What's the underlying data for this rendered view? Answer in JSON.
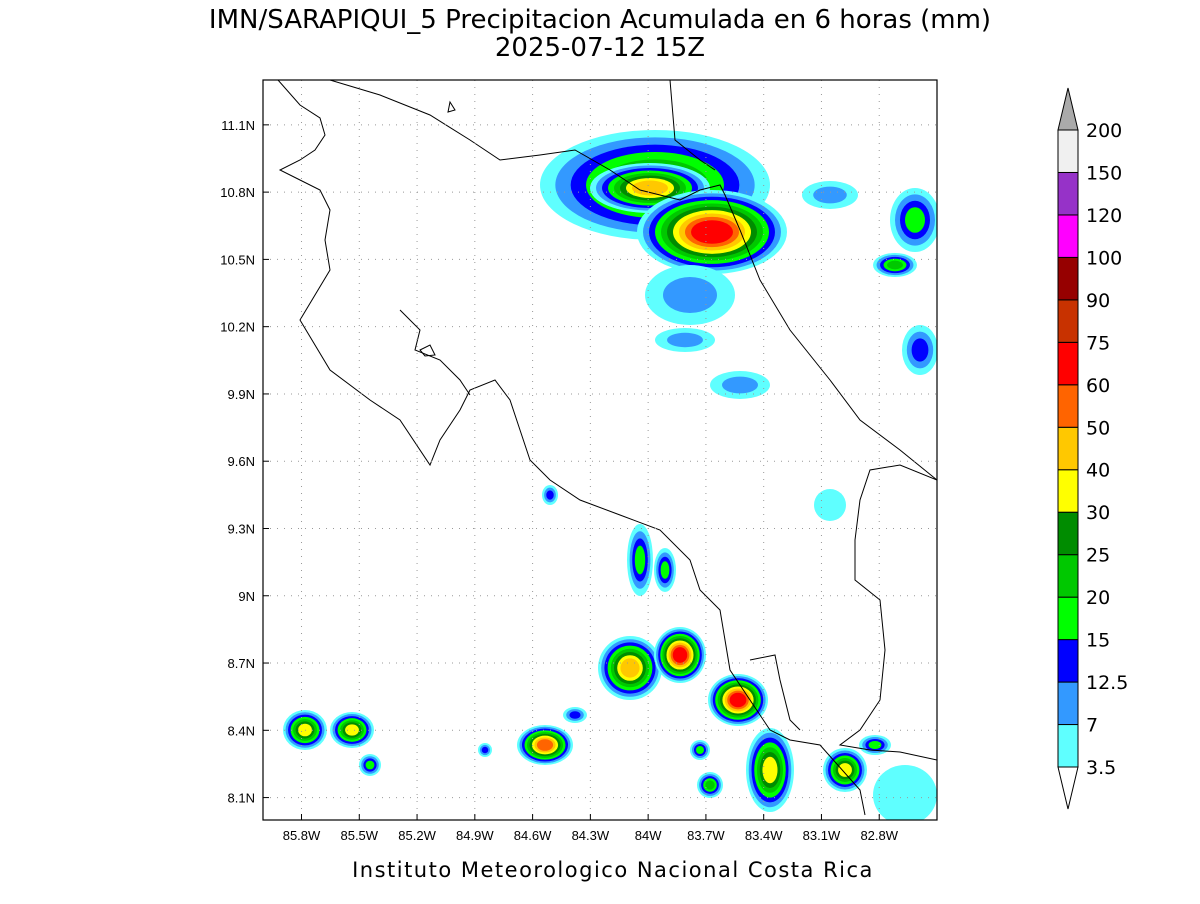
{
  "title": "IMN/SARAPIQUI_5 Precipitacion Acumulada en 6 horas (mm)",
  "subtitle": "2025-07-12 15Z",
  "footer": "Instituto Meteorologico Nacional Costa Rica",
  "map": {
    "xlim": [
      -86.0,
      -82.5
    ],
    "ylim": [
      8.0,
      11.3
    ],
    "xticks": [
      {
        "value": -85.8,
        "label": "85.8W"
      },
      {
        "value": -85.5,
        "label": "85.5W"
      },
      {
        "value": -85.2,
        "label": "85.2W"
      },
      {
        "value": -84.9,
        "label": "84.9W"
      },
      {
        "value": -84.6,
        "label": "84.6W"
      },
      {
        "value": -84.3,
        "label": "84.3W"
      },
      {
        "value": -84.0,
        "label": "84W"
      },
      {
        "value": -83.7,
        "label": "83.7W"
      },
      {
        "value": -83.4,
        "label": "83.4W"
      },
      {
        "value": -83.1,
        "label": "83.1W"
      },
      {
        "value": -82.8,
        "label": "82.8W"
      }
    ],
    "yticks": [
      {
        "value": 8.1,
        "label": "8.1N"
      },
      {
        "value": 8.4,
        "label": "8.4N"
      },
      {
        "value": 8.7,
        "label": "8.7N"
      },
      {
        "value": 9.0,
        "label": "9N"
      },
      {
        "value": 9.3,
        "label": "9.3N"
      },
      {
        "value": 9.6,
        "label": "9.6N"
      },
      {
        "value": 9.9,
        "label": "9.9N"
      },
      {
        "value": 10.2,
        "label": "10.2N"
      },
      {
        "value": 10.5,
        "label": "10.5N"
      },
      {
        "value": 10.8,
        "label": "10.8N"
      },
      {
        "value": 11.1,
        "label": "11.1N"
      }
    ],
    "grid": true
  },
  "colorbar": {
    "levels": [
      3.5,
      7,
      12.5,
      15,
      20,
      25,
      30,
      40,
      50,
      60,
      75,
      90,
      100,
      120,
      150,
      200
    ],
    "colors": [
      "#5fffff",
      "#3399ff",
      "#0000ff",
      "#00ff00",
      "#00c800",
      "#008c00",
      "#ffff00",
      "#ffc800",
      "#ff6400",
      "#ff0000",
      "#c83200",
      "#960000",
      "#ff00ff",
      "#9632c8",
      "#f0f0f0"
    ],
    "over_color": "#aaaaaa",
    "under_color": "#ffffff"
  }
}
